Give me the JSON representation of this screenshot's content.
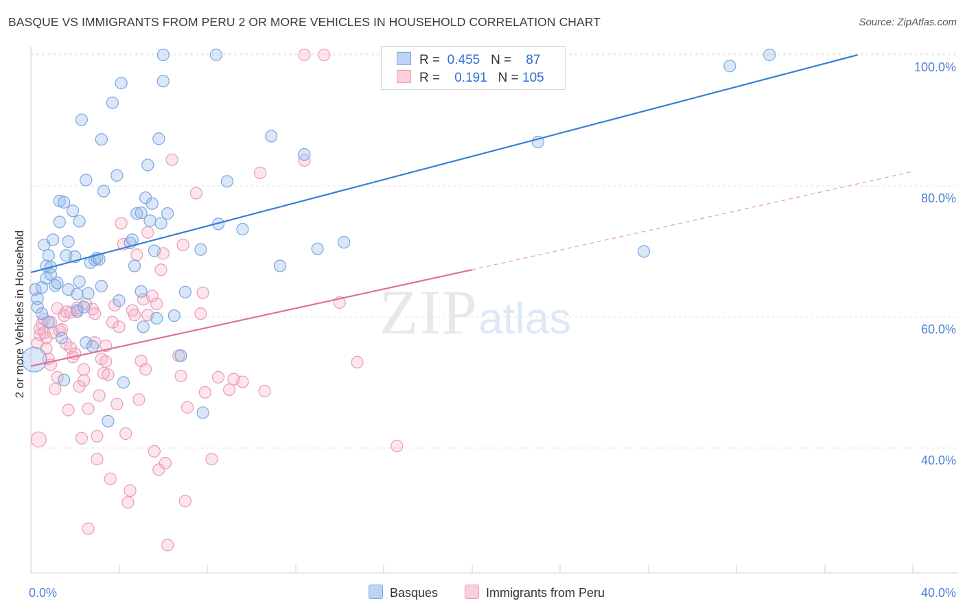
{
  "title": "BASQUE VS IMMIGRANTS FROM PERU 2 OR MORE VEHICLES IN HOUSEHOLD CORRELATION CHART",
  "source": "Source: ZipAtlas.com",
  "watermark": {
    "zip": "ZIP",
    "atlas": "atlas"
  },
  "legend": {
    "r_label": "R =",
    "n_label": "N =",
    "rows": [
      {
        "r": "0.455",
        "n": "87",
        "color": "#a8c8f0"
      },
      {
        "r": "0.191",
        "n": "105",
        "color": "#f5b8cb"
      }
    ]
  },
  "bottom_legend": {
    "basques": "Basques",
    "peru": "Immigrants from Peru"
  },
  "colors": {
    "blue": "#3b7dd8",
    "blue_fill": "rgba(145,185,235,0.35)",
    "pink": "#e0709a",
    "pink_fill": "rgba(245,170,195,0.30)",
    "grid": "#e3e3e3",
    "tick_text": "#4a7fd4"
  },
  "chart_data": {
    "type": "scatter",
    "xlabel": "",
    "ylabel": "2 or more Vehicles in Household",
    "xlim": [
      0,
      40
    ],
    "ylim": [
      20,
      101
    ],
    "x_tick_labels": [
      {
        "x": 0,
        "label": "0.0%"
      },
      {
        "x": 40,
        "label": "40.0%"
      }
    ],
    "y_ticks": [
      {
        "y": 40,
        "label": "40.0%"
      },
      {
        "y": 60,
        "label": "60.0%"
      },
      {
        "y": 80,
        "label": "80.0%"
      },
      {
        "y": 100,
        "label": "100.0%"
      }
    ],
    "grid": true,
    "series": [
      {
        "name": "Basques",
        "r": 0.455,
        "n": 87,
        "trend": {
          "x0": 0,
          "y0": 66.8,
          "x1": 37.5,
          "y1": 100.0,
          "dashed_to": null
        },
        "points": [
          [
            0.2,
            64.2
          ],
          [
            0.3,
            62.8
          ],
          [
            0.3,
            61.5
          ],
          [
            0.5,
            60.5
          ],
          [
            0.5,
            64.5
          ],
          [
            0.6,
            71.0
          ],
          [
            0.7,
            65.9
          ],
          [
            0.7,
            67.8
          ],
          [
            0.8,
            59.2
          ],
          [
            0.8,
            69.4
          ],
          [
            0.9,
            66.5
          ],
          [
            0.9,
            67.6
          ],
          [
            1.0,
            71.8
          ],
          [
            1.1,
            64.8
          ],
          [
            1.2,
            65.2
          ],
          [
            1.3,
            74.5
          ],
          [
            1.3,
            77.7
          ],
          [
            1.4,
            56.8
          ],
          [
            1.5,
            50.4
          ],
          [
            1.5,
            77.5
          ],
          [
            1.6,
            69.4
          ],
          [
            1.7,
            71.5
          ],
          [
            1.7,
            64.2
          ],
          [
            1.9,
            76.2
          ],
          [
            2.0,
            69.2
          ],
          [
            2.1,
            61.0
          ],
          [
            2.1,
            63.5
          ],
          [
            2.2,
            65.4
          ],
          [
            2.2,
            74.6
          ],
          [
            2.3,
            90.1
          ],
          [
            2.4,
            61.5
          ],
          [
            2.5,
            80.9
          ],
          [
            2.5,
            56.1
          ],
          [
            2.6,
            63.6
          ],
          [
            2.7,
            68.3
          ],
          [
            2.8,
            55.5
          ],
          [
            2.9,
            68.7
          ],
          [
            3.0,
            69.0
          ],
          [
            3.1,
            68.8
          ],
          [
            3.2,
            64.7
          ],
          [
            3.2,
            87.1
          ],
          [
            3.3,
            79.2
          ],
          [
            3.5,
            44.1
          ],
          [
            3.7,
            92.7
          ],
          [
            3.9,
            81.6
          ],
          [
            4.0,
            62.5
          ],
          [
            4.1,
            95.7
          ],
          [
            4.2,
            50.0
          ],
          [
            4.5,
            71.3
          ],
          [
            4.6,
            71.8
          ],
          [
            4.7,
            67.8
          ],
          [
            4.8,
            75.8
          ],
          [
            5.0,
            75.9
          ],
          [
            5.0,
            63.9
          ],
          [
            5.1,
            58.5
          ],
          [
            5.2,
            78.2
          ],
          [
            5.3,
            83.2
          ],
          [
            5.4,
            74.7
          ],
          [
            5.5,
            77.3
          ],
          [
            5.6,
            70.1
          ],
          [
            5.7,
            59.8
          ],
          [
            5.8,
            87.2
          ],
          [
            5.9,
            74.3
          ],
          [
            6.0,
            96.0
          ],
          [
            6.0,
            100.0
          ],
          [
            6.2,
            75.8
          ],
          [
            6.5,
            60.2
          ],
          [
            6.8,
            54.1
          ],
          [
            7.0,
            63.8
          ],
          [
            7.7,
            70.3
          ],
          [
            7.8,
            45.4
          ],
          [
            8.4,
            100.0
          ],
          [
            8.5,
            74.2
          ],
          [
            8.9,
            80.7
          ],
          [
            9.6,
            73.4
          ],
          [
            10.9,
            87.6
          ],
          [
            11.3,
            67.8
          ],
          [
            12.4,
            84.8
          ],
          [
            13.0,
            70.4
          ],
          [
            14.2,
            71.4
          ],
          [
            20.9,
            100.0
          ],
          [
            23.0,
            86.7
          ],
          [
            27.8,
            70.0
          ],
          [
            31.7,
            98.3
          ],
          [
            33.5,
            100.0
          ]
        ],
        "big_points": [
          [
            0.15,
            53.5
          ]
        ]
      },
      {
        "name": "Immigrants from Peru",
        "r": 0.191,
        "n": 105,
        "trend": {
          "x0": 0,
          "y0": 52.5,
          "x1": 20.0,
          "y1": 67.2,
          "dashed_to": {
            "x": 40.0,
            "y": 82.2
          }
        },
        "points": [
          [
            0.3,
            56.0
          ],
          [
            0.4,
            57.3
          ],
          [
            0.4,
            58.2
          ],
          [
            0.5,
            59.0
          ],
          [
            0.6,
            57.6
          ],
          [
            0.6,
            59.7
          ],
          [
            0.7,
            55.2
          ],
          [
            0.7,
            56.8
          ],
          [
            0.8,
            53.6
          ],
          [
            0.9,
            52.7
          ],
          [
            0.9,
            59.2
          ],
          [
            1.0,
            57.6
          ],
          [
            1.1,
            49.0
          ],
          [
            1.2,
            61.3
          ],
          [
            1.2,
            50.8
          ],
          [
            1.3,
            57.9
          ],
          [
            1.4,
            58.1
          ],
          [
            1.5,
            60.2
          ],
          [
            1.6,
            55.9
          ],
          [
            1.6,
            60.8
          ],
          [
            1.7,
            45.8
          ],
          [
            1.8,
            60.7
          ],
          [
            1.8,
            55.3
          ],
          [
            1.9,
            53.9
          ],
          [
            2.0,
            54.4
          ],
          [
            2.1,
            61.4
          ],
          [
            2.1,
            60.8
          ],
          [
            2.2,
            49.4
          ],
          [
            2.3,
            41.5
          ],
          [
            2.4,
            50.3
          ],
          [
            2.4,
            52.0
          ],
          [
            2.5,
            62.0
          ],
          [
            2.6,
            46.0
          ],
          [
            2.6,
            27.7
          ],
          [
            2.8,
            61.2
          ],
          [
            2.9,
            60.5
          ],
          [
            2.9,
            56.1
          ],
          [
            3.0,
            41.8
          ],
          [
            3.0,
            38.3
          ],
          [
            3.1,
            48.0
          ],
          [
            3.2,
            53.6
          ],
          [
            3.3,
            51.4
          ],
          [
            3.4,
            55.6
          ],
          [
            3.4,
            53.2
          ],
          [
            3.5,
            51.2
          ],
          [
            3.6,
            35.3
          ],
          [
            3.7,
            59.2
          ],
          [
            3.8,
            61.8
          ],
          [
            3.9,
            46.7
          ],
          [
            4.0,
            58.5
          ],
          [
            4.1,
            74.3
          ],
          [
            4.2,
            71.1
          ],
          [
            4.3,
            42.2
          ],
          [
            4.4,
            31.7
          ],
          [
            4.5,
            33.5
          ],
          [
            4.6,
            61.0
          ],
          [
            4.7,
            60.3
          ],
          [
            4.8,
            69.5
          ],
          [
            4.9,
            47.4
          ],
          [
            5.0,
            53.3
          ],
          [
            5.1,
            62.7
          ],
          [
            5.2,
            52.0
          ],
          [
            5.3,
            72.9
          ],
          [
            5.3,
            60.3
          ],
          [
            5.5,
            63.2
          ],
          [
            5.6,
            39.5
          ],
          [
            5.7,
            62.0
          ],
          [
            5.8,
            36.7
          ],
          [
            5.9,
            67.2
          ],
          [
            6.0,
            69.7
          ],
          [
            6.1,
            37.7
          ],
          [
            6.2,
            25.2
          ],
          [
            6.4,
            84.0
          ],
          [
            6.7,
            54.1
          ],
          [
            6.8,
            51.0
          ],
          [
            6.9,
            71.0
          ],
          [
            7.0,
            31.9
          ],
          [
            7.1,
            46.2
          ],
          [
            7.5,
            78.9
          ],
          [
            7.7,
            60.5
          ],
          [
            7.8,
            63.7
          ],
          [
            7.9,
            48.5
          ],
          [
            8.2,
            38.3
          ],
          [
            8.5,
            50.8
          ],
          [
            9.0,
            48.9
          ],
          [
            9.2,
            50.5
          ],
          [
            9.6,
            50.1
          ],
          [
            10.4,
            82.0
          ],
          [
            10.6,
            48.7
          ],
          [
            12.4,
            83.9
          ],
          [
            12.4,
            100.0
          ],
          [
            13.3,
            100.0
          ],
          [
            14.0,
            62.2
          ],
          [
            14.8,
            53.1
          ],
          [
            16.6,
            40.3
          ]
        ],
        "big_points": [
          [
            0.35,
            41.3
          ]
        ]
      }
    ]
  }
}
